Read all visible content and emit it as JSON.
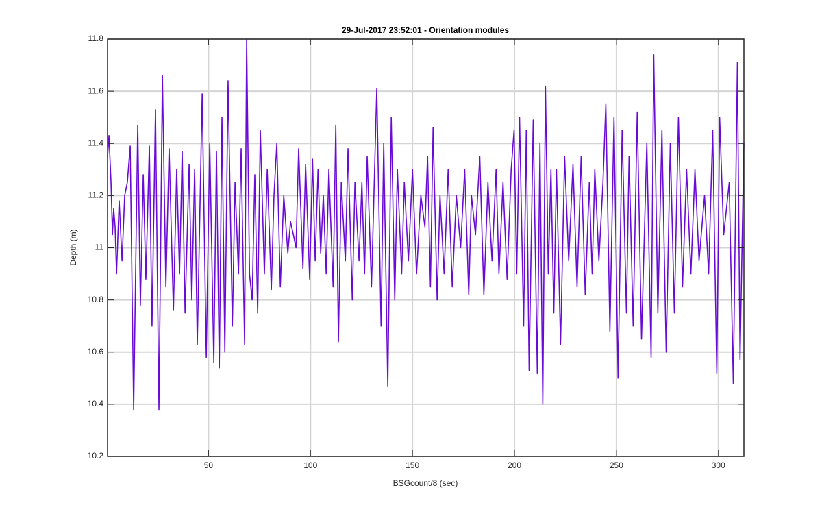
{
  "chart_data": {
    "type": "line",
    "title": "29-Jul-2017 23:52:01 - Orientation modules",
    "xlabel": "BSGcount/8 (sec)",
    "ylabel": "Depth (m)",
    "color": "#6a0ad6",
    "grid": true,
    "xlim": [
      0.5,
      312.5
    ],
    "xticks": [
      50,
      100,
      150,
      200,
      250,
      300
    ],
    "ylim": [
      10.2,
      11.8
    ],
    "yticks": [
      10.2,
      10.4,
      10.6,
      10.8,
      11,
      11.2,
      11.4,
      11.6,
      11.8
    ],
    "x": [
      0.5,
      1.2,
      2.2,
      2.9,
      3.5,
      4.2,
      4.9,
      6.2,
      7.6,
      8.9,
      10.2,
      11.6,
      13.3,
      15.3,
      16.6,
      18.0,
      19.3,
      21.0,
      22.3,
      24.0,
      25.7,
      27.4,
      29.1,
      30.7,
      32.8,
      34.4,
      35.8,
      37.1,
      38.5,
      40.5,
      41.8,
      43.2,
      44.5,
      46.9,
      48.9,
      50.6,
      52.6,
      53.9,
      55.3,
      56.6,
      58.0,
      59.6,
      61.7,
      63.0,
      64.7,
      66.0,
      67.7,
      68.7,
      70.1,
      71.4,
      72.7,
      74.1,
      75.4,
      77.4,
      78.8,
      80.8,
      82.1,
      83.5,
      85.2,
      86.9,
      88.9,
      90.2,
      91.6,
      92.9,
      94.2,
      96.3,
      97.6,
      99.6,
      101.0,
      102.3,
      103.7,
      105.0,
      106.3,
      107.7,
      109.0,
      111.1,
      112.4,
      113.7,
      115.1,
      117.1,
      118.4,
      120.5,
      121.8,
      123.8,
      125.2,
      126.5,
      127.8,
      129.9,
      132.5,
      134.6,
      135.9,
      137.9,
      139.6,
      141.3,
      142.6,
      144.7,
      146.0,
      148.0,
      150.0,
      152.0,
      154.1,
      156.1,
      157.4,
      158.8,
      160.1,
      162.1,
      163.5,
      165.5,
      167.5,
      169.5,
      171.5,
      173.6,
      175.6,
      177.6,
      178.9,
      180.9,
      183.0,
      185.0,
      187.0,
      189.0,
      191.0,
      192.4,
      194.4,
      196.4,
      198.4,
      199.8,
      201.1,
      202.5,
      204.5,
      205.8,
      207.2,
      209.2,
      211.2,
      212.5,
      213.9,
      215.2,
      216.6,
      217.9,
      219.3,
      220.6,
      222.6,
      224.6,
      226.6,
      228.7,
      230.7,
      232.7,
      234.7,
      236.7,
      238.1,
      239.4,
      241.4,
      243.4,
      244.8,
      246.8,
      248.8,
      250.8,
      252.8,
      254.9,
      256.2,
      258.2,
      260.2,
      262.3,
      264.9,
      267.0,
      268.3,
      270.3,
      272.3,
      274.4,
      276.4,
      278.4,
      280.4,
      282.4,
      284.4,
      286.5,
      288.5,
      290.5,
      293.2,
      295.2,
      297.2,
      299.2,
      300.6,
      302.6,
      305.3,
      307.3,
      309.3,
      310.6,
      312.5
    ],
    "values": [
      11.35,
      11.43,
      11.25,
      11.05,
      11.15,
      11.08,
      10.9,
      11.18,
      10.95,
      11.2,
      11.25,
      11.39,
      10.38,
      11.47,
      10.78,
      11.28,
      10.88,
      11.39,
      10.7,
      11.53,
      10.38,
      11.66,
      10.85,
      11.38,
      10.76,
      11.3,
      10.9,
      11.37,
      10.75,
      11.32,
      10.8,
      11.3,
      10.63,
      11.59,
      10.58,
      11.4,
      10.56,
      11.37,
      10.54,
      11.5,
      10.6,
      11.64,
      10.7,
      11.25,
      10.9,
      11.38,
      10.63,
      11.8,
      10.9,
      10.8,
      11.28,
      10.75,
      11.45,
      10.9,
      11.3,
      10.84,
      11.2,
      11.4,
      10.85,
      11.2,
      10.98,
      11.1,
      11.05,
      11.0,
      11.38,
      10.92,
      11.32,
      10.88,
      11.34,
      10.95,
      11.3,
      10.98,
      11.2,
      10.9,
      11.3,
      10.85,
      11.47,
      10.64,
      11.25,
      10.95,
      11.38,
      10.8,
      11.25,
      10.95,
      11.25,
      10.9,
      11.35,
      10.85,
      11.61,
      10.7,
      11.4,
      10.47,
      11.5,
      10.8,
      11.3,
      10.9,
      11.25,
      10.95,
      11.3,
      10.9,
      11.2,
      11.08,
      11.35,
      10.85,
      11.46,
      10.8,
      11.2,
      10.9,
      11.3,
      10.85,
      11.2,
      11.0,
      11.3,
      10.82,
      11.2,
      11.05,
      11.35,
      10.82,
      11.25,
      10.95,
      11.3,
      10.9,
      11.25,
      10.88,
      11.3,
      11.45,
      10.9,
      11.5,
      10.7,
      11.45,
      10.53,
      11.49,
      10.52,
      11.4,
      10.4,
      11.62,
      10.9,
      11.3,
      10.75,
      11.3,
      10.63,
      11.35,
      10.95,
      11.32,
      10.85,
      11.35,
      10.82,
      11.25,
      10.9,
      11.3,
      10.95,
      11.25,
      11.55,
      10.68,
      11.5,
      10.5,
      11.45,
      10.75,
      11.35,
      10.7,
      11.52,
      10.65,
      11.4,
      10.58,
      11.74,
      10.75,
      11.45,
      10.6,
      11.4,
      10.75,
      11.5,
      10.85,
      11.3,
      10.9,
      11.3,
      10.95,
      11.2,
      10.9,
      11.45,
      10.52,
      11.5,
      11.05,
      11.25,
      10.48,
      11.71,
      10.57,
      11.4
    ]
  }
}
